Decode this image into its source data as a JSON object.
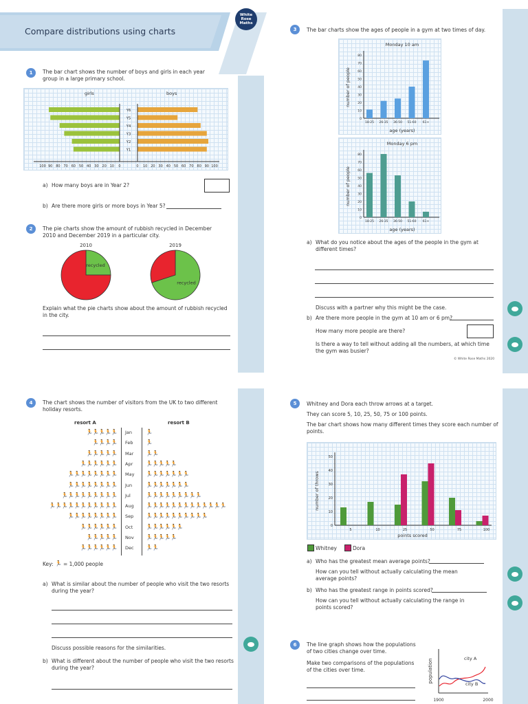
{
  "page_title": "Compare distributions using charts",
  "logo": {
    "lines": [
      "White",
      "Rose",
      "Maths"
    ]
  },
  "copyright": "© White Rose Maths 2020",
  "q1": {
    "number": "1",
    "intro": "The bar chart shows the number of boys and girls in each year group in a large primary school.",
    "chart_data": {
      "type": "bar",
      "orientation": "horizontal-back-to-back",
      "categories": [
        "Y6",
        "Y5",
        "Y4",
        "Y3",
        "Y2",
        "Y1"
      ],
      "series": [
        {
          "name": "girls",
          "values": [
            92,
            90,
            78,
            72,
            62,
            60
          ],
          "color": "#9bc23c"
        },
        {
          "name": "boys",
          "values": [
            78,
            52,
            82,
            90,
            92,
            90
          ],
          "color": "#e6a53c"
        }
      ],
      "ticks": [
        "100",
        "90",
        "80",
        "70",
        "60",
        "50",
        "40",
        "30",
        "20",
        "10",
        "0",
        "0",
        "10",
        "20",
        "30",
        "40",
        "50",
        "60",
        "70",
        "80",
        "90",
        "100"
      ],
      "xlim": [
        0,
        100
      ]
    },
    "a_label": "a)",
    "a_text": "How many boys are in Year 2?",
    "b_label": "b)",
    "b_text": "Are there more girls or more boys in Year 5?"
  },
  "q2": {
    "number": "2",
    "intro": "The pie charts show the amount of rubbish recycled in December 2010 and December 2019 in a particular city.",
    "chart_data": [
      {
        "type": "pie",
        "title": "2010",
        "slices": [
          {
            "label": "recycled",
            "value": 25,
            "color": "#6cc24a"
          },
          {
            "label": "",
            "value": 75,
            "color": "#e8242e"
          }
        ]
      },
      {
        "type": "pie",
        "title": "2019",
        "slices": [
          {
            "label": "recycled",
            "value": 70,
            "color": "#6cc24a"
          },
          {
            "label": "",
            "value": 30,
            "color": "#e8242e"
          }
        ]
      }
    ],
    "prompt": "Explain what the pie charts show about the amount of rubbish recycled in the city."
  },
  "q3": {
    "number": "3",
    "intro": "The bar charts show the ages of people in a gym at two times of day.",
    "chart_data": [
      {
        "type": "bar",
        "title": "Monday 10 am",
        "categories": [
          "18-25",
          "26-35",
          "36-50",
          "51-60",
          "61+"
        ],
        "values": [
          11,
          22,
          25,
          40,
          73
        ],
        "ylabel": "number of people",
        "xlabel": "age (years)",
        "ylim": [
          0,
          80
        ],
        "color": "#5aa0e0",
        "yticks": [
          "0",
          "10",
          "20",
          "30",
          "40",
          "50",
          "60",
          "70",
          "80"
        ]
      },
      {
        "type": "bar",
        "title": "Monday 6 pm",
        "categories": [
          "18-25",
          "26-35",
          "36-50",
          "51-60",
          "61+"
        ],
        "values": [
          56,
          80,
          53,
          20,
          7
        ],
        "ylabel": "number of people",
        "xlabel": "age (years)",
        "ylim": [
          0,
          80
        ],
        "color": "#4e9d91",
        "yticks": [
          "0",
          "10",
          "20",
          "30",
          "40",
          "50",
          "60",
          "70",
          "80"
        ]
      }
    ],
    "a_label": "a)",
    "a_text": "What do you notice about the ages of the people in the gym at different times?",
    "discuss": "Discuss with a partner why this might be the case.",
    "b_label": "b)",
    "b_text": "Are there more people in the gym at 10 am or 6 pm?",
    "b_text2": "How many more people are there?",
    "b_text3": "Is there a way to tell without adding all the numbers, at which time the gym was busier?"
  },
  "q4": {
    "number": "4",
    "intro": "The chart shows the number of visitors from the UK to two different holiday resorts.",
    "chart_data": {
      "type": "table",
      "columns": [
        "resort A",
        "resort B"
      ],
      "months": [
        "Jan",
        "Feb",
        "Mar",
        "Apr",
        "May",
        "Jun",
        "Jul",
        "Aug",
        "Sep",
        "Oct",
        "Nov",
        "Dec"
      ],
      "resort_a": [
        5,
        4,
        5,
        6,
        8,
        8,
        9,
        11,
        8,
        6,
        5,
        6
      ],
      "resort_b": [
        0.5,
        0.5,
        1.5,
        5,
        7,
        7,
        9,
        13,
        10,
        6,
        5,
        1.5
      ]
    },
    "a_icons": [
      "🏃🏃🏃🏃🏃",
      "🏃🏃🏃🏃",
      "🏃🏃🏃🏃🏃",
      "🏃🏃🏃🏃🏃🏃",
      "🏃🏃🏃🏃🏃🏃🏃🏃",
      "🏃🏃🏃🏃🏃🏃🏃🏃",
      "🏃🏃🏃🏃🏃🏃🏃🏃🏃",
      "🏃🏃🏃🏃🏃🏃🏃🏃🏃🏃🏃",
      "🏃🏃🏃🏃🏃🏃🏃🏃",
      "🏃🏃🏃🏃🏃🏃",
      "🏃🏃🏃🏃🏃",
      "🏃🏃🏃🏃🏃🏃"
    ],
    "b_icons": [
      "🏃",
      "🏃",
      "🏃🏃",
      "🏃🏃🏃🏃🏃",
      "🏃🏃🏃🏃🏃🏃🏃",
      "🏃🏃🏃🏃🏃🏃🏃",
      "🏃🏃🏃🏃🏃🏃🏃🏃🏃",
      "🏃🏃🏃🏃🏃🏃🏃🏃🏃🏃🏃🏃🏃",
      "🏃🏃🏃🏃🏃🏃🏃🏃🏃🏃",
      "🏃🏃🏃🏃🏃🏃",
      "🏃🏃🏃🏃🏃",
      "🏃🏃"
    ],
    "key_prefix": "Key:",
    "key_text": "= 1,000 people",
    "a_label": "a)",
    "a_text": "What is similar about the number of people who visit the two resorts during the year?",
    "discuss": "Discuss possible reasons for the similarities.",
    "b_label": "b)",
    "b_text": "What is different about the number of people who visit the two resorts during the year?"
  },
  "q5": {
    "number": "5",
    "intro1": "Whitney and Dora each throw arrows at a target.",
    "intro2": "They can score 5, 10, 25, 50, 75 or 100 points.",
    "intro3": "The bar chart shows how many different times they score each number of points.",
    "chart_data": {
      "type": "bar",
      "categories": [
        "5",
        "10",
        "25",
        "50",
        "75",
        "100"
      ],
      "series": [
        {
          "name": "Whitney",
          "values": [
            13,
            17,
            15,
            32,
            20,
            3
          ],
          "color": "#4f9a3a"
        },
        {
          "name": "Dora",
          "values": [
            0,
            0,
            37,
            45,
            11,
            7
          ],
          "color": "#c8216b"
        }
      ],
      "ylabel": "number of throws",
      "xlabel": "points scored",
      "ylim": [
        0,
        50
      ],
      "yticks": [
        "0",
        "10",
        "20",
        "30",
        "40",
        "50"
      ]
    },
    "a_label": "a)",
    "a_text": "Who has the greatest mean average points?",
    "a_text2": "How can you tell without actually calculating the mean average points?",
    "b_label": "b)",
    "b_text": "Who has the greatest range in points scored?",
    "b_text2": "How can you tell without actually calculating the range in points scored?"
  },
  "q6": {
    "number": "6",
    "intro1": "The line graph shows how the populations of two cities change over time.",
    "intro2": "Make two comparisons of the populations of the cities over time.",
    "chart_data": {
      "type": "line",
      "ylabel": "population",
      "x_ticks": [
        "1900",
        "2000"
      ],
      "series": [
        {
          "name": "city A",
          "color": "#e8242e"
        },
        {
          "name": "city B",
          "color": "#2c3e9c"
        }
      ]
    }
  }
}
